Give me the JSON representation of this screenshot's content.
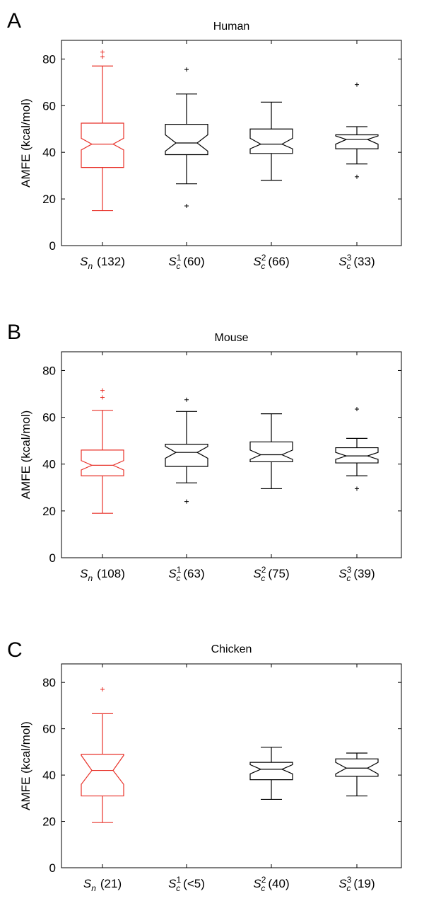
{
  "panels": [
    {
      "letter": "A",
      "title": "Human",
      "ylabel": "AMFE (kcal/mol)"
    },
    {
      "letter": "B",
      "title": "Mouse",
      "ylabel": "AMFE (kcal/mol)"
    },
    {
      "letter": "C",
      "title": "Chicken",
      "ylabel": "AMFE (kcal/mol)"
    }
  ],
  "colors": {
    "sn": "#e8322a",
    "sc": "#000000"
  },
  "chart_data": [
    {
      "type": "box",
      "title": "Human",
      "ylabel": "AMFE (kcal/mol)",
      "ylim": [
        0,
        88
      ],
      "yticks": [
        0,
        20,
        40,
        60,
        80
      ],
      "grid": false,
      "categories": [
        {
          "sym": "S",
          "sub": "n",
          "sup": "",
          "count": "(132)",
          "color": "sn",
          "min": 15,
          "q1": 33.5,
          "median": 43.5,
          "q3": 52.5,
          "max": 77,
          "notch_lo": 41,
          "notch_hi": 46,
          "outliers": [
            81,
            83
          ]
        },
        {
          "sym": "S",
          "sub": "c",
          "sup": "1",
          "count": "(60)",
          "color": "sc",
          "min": 26.5,
          "q1": 39,
          "median": 44,
          "q3": 52,
          "max": 65,
          "notch_lo": 40.5,
          "notch_hi": 47.5,
          "outliers": [
            17,
            75.5
          ]
        },
        {
          "sym": "S",
          "sub": "c",
          "sup": "2",
          "count": "(66)",
          "color": "sc",
          "min": 28,
          "q1": 39.5,
          "median": 43.5,
          "q3": 50,
          "max": 61.5,
          "notch_lo": 41.5,
          "notch_hi": 46,
          "outliers": []
        },
        {
          "sym": "S",
          "sub": "c",
          "sup": "3",
          "count": "(33)",
          "color": "sc",
          "min": 35,
          "q1": 41.5,
          "median": 45.5,
          "q3": 47.5,
          "max": 51,
          "notch_lo": 43.5,
          "notch_hi": 47,
          "outliers": [
            29.5,
            69
          ]
        }
      ]
    },
    {
      "type": "box",
      "title": "Mouse",
      "ylabel": "AMFE (kcal/mol)",
      "ylim": [
        0,
        88
      ],
      "yticks": [
        0,
        20,
        40,
        60,
        80
      ],
      "grid": false,
      "categories": [
        {
          "sym": "S",
          "sub": "n",
          "sup": "",
          "count": "(108)",
          "color": "sn",
          "min": 19,
          "q1": 35,
          "median": 39.5,
          "q3": 46,
          "max": 63,
          "notch_lo": 37.5,
          "notch_hi": 41.5,
          "outliers": [
            68.5,
            71.5
          ]
        },
        {
          "sym": "S",
          "sub": "c",
          "sup": "1",
          "count": "(63)",
          "color": "sc",
          "min": 32,
          "q1": 39,
          "median": 45,
          "q3": 48.5,
          "max": 62.5,
          "notch_lo": 42.5,
          "notch_hi": 47.5,
          "outliers": [
            24,
            67.5
          ]
        },
        {
          "sym": "S",
          "sub": "c",
          "sup": "2",
          "count": "(75)",
          "color": "sc",
          "min": 29.5,
          "q1": 41,
          "median": 44,
          "q3": 49.5,
          "max": 61.5,
          "notch_lo": 42,
          "notch_hi": 46,
          "outliers": []
        },
        {
          "sym": "S",
          "sub": "c",
          "sup": "3",
          "count": "(39)",
          "color": "sc",
          "min": 35,
          "q1": 40.5,
          "median": 43.5,
          "q3": 47,
          "max": 51,
          "notch_lo": 42,
          "notch_hi": 45,
          "outliers": [
            29.5,
            63.5
          ]
        }
      ]
    },
    {
      "type": "box",
      "title": "Chicken",
      "ylabel": "AMFE (kcal/mol)",
      "ylim": [
        0,
        88
      ],
      "yticks": [
        0,
        20,
        40,
        60,
        80
      ],
      "grid": false,
      "categories": [
        {
          "sym": "S",
          "sub": "n",
          "sup": "",
          "count": "(21)",
          "color": "sn",
          "min": 19.5,
          "q1": 31,
          "median": 42,
          "q3": 49,
          "max": 66.5,
          "notch_lo": 36,
          "notch_hi": 48.5,
          "outliers": [
            77
          ]
        },
        {
          "sym": "S",
          "sub": "c",
          "sup": "1",
          "count": "(<5)",
          "color": "sc",
          "empty": true
        },
        {
          "sym": "S",
          "sub": "c",
          "sup": "2",
          "count": "(40)",
          "color": "sc",
          "min": 29.5,
          "q1": 38,
          "median": 42.5,
          "q3": 45.5,
          "max": 52,
          "notch_lo": 40.5,
          "notch_hi": 44.5,
          "outliers": []
        },
        {
          "sym": "S",
          "sub": "c",
          "sup": "3",
          "count": "(19)",
          "color": "sc",
          "min": 31,
          "q1": 39.5,
          "median": 43,
          "q3": 47,
          "max": 49.5,
          "notch_lo": 40.5,
          "notch_hi": 45.5,
          "outliers": []
        }
      ]
    }
  ]
}
